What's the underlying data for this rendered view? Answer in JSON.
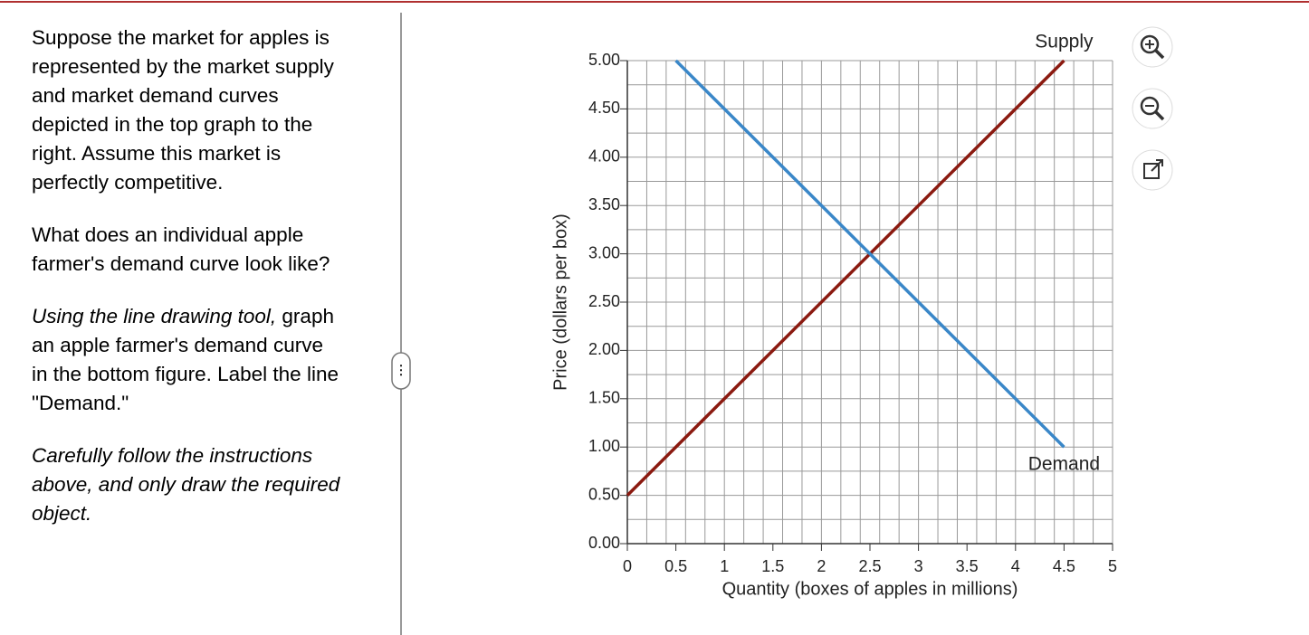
{
  "instructions": {
    "paragraph_1": "Suppose the market for apples is represented by the market supply and market demand curves depicted in the top graph to the right. Assume this market is perfectly competitive.",
    "paragraph_2": "What does an individual apple farmer's demand curve look like?",
    "paragraph_3_italic": "Using the line drawing tool,",
    "paragraph_3_rest": "graph an apple farmer's demand curve in the bottom figure.  Label the line \"Demand.\"",
    "paragraph_4": "Carefully follow the instructions above, and only draw the required object."
  },
  "chart_data": {
    "type": "line",
    "xlabel": "Quantity (boxes of apples in millions)",
    "ylabel": "Price (dollars per box)",
    "xlim": [
      0,
      5
    ],
    "ylim": [
      0,
      5
    ],
    "xticks": [
      0,
      0.5,
      1,
      1.5,
      2,
      2.5,
      3,
      3.5,
      4,
      4.5,
      5
    ],
    "yticks": [
      {
        "value": 0,
        "label": "0.00"
      },
      {
        "value": 0.5,
        "label": "0.50"
      },
      {
        "value": 1,
        "label": "1.00"
      },
      {
        "value": 1.5,
        "label": "1.50"
      },
      {
        "value": 2,
        "label": "2.00"
      },
      {
        "value": 2.5,
        "label": "2.50"
      },
      {
        "value": 3,
        "label": "3.00"
      },
      {
        "value": 3.5,
        "label": "3.50"
      },
      {
        "value": 4,
        "label": "4.00"
      },
      {
        "value": 4.5,
        "label": "4.50"
      },
      {
        "value": 5,
        "label": "5.00"
      }
    ],
    "grid": true,
    "xgrid_step": 0.2,
    "ygrid_step": 0.25,
    "series": [
      {
        "name": "Supply",
        "color": "#8b1a10",
        "x": [
          0,
          4.5
        ],
        "values": [
          0.5,
          5
        ]
      },
      {
        "name": "Demand",
        "color": "#3a87c8",
        "x": [
          0.5,
          4.5
        ],
        "values": [
          5,
          1
        ]
      }
    ]
  }
}
